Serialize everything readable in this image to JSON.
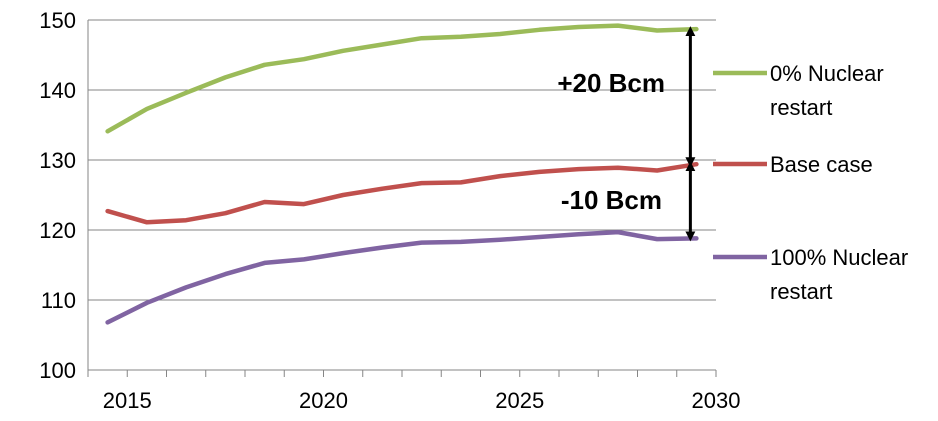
{
  "chart_data": {
    "type": "line",
    "x": [
      2014.5,
      2015.5,
      2016.5,
      2017.5,
      2018.5,
      2019.5,
      2020.5,
      2021.5,
      2022.5,
      2023.5,
      2024.5,
      2025.5,
      2026.5,
      2027.5,
      2028.5,
      2029.5
    ],
    "xlim": [
      2014,
      2030
    ],
    "ylim": [
      100,
      150
    ],
    "xticks": [
      "2015",
      "2020",
      "2025",
      "2030"
    ],
    "yticks": [
      "100",
      "110",
      "120",
      "130",
      "140",
      "150"
    ],
    "grid": "horizontal",
    "legend_position": "right",
    "series": [
      {
        "name": "0% Nuclear restart",
        "legend_lines": [
          "0% Nuclear",
          "restart"
        ],
        "color": "#9BBB59",
        "values": [
          134.1,
          137.3,
          139.6,
          141.8,
          143.6,
          144.4,
          145.6,
          146.5,
          147.4,
          147.6,
          148.0,
          148.6,
          149.0,
          149.2,
          148.5,
          148.7
        ]
      },
      {
        "name": "Base case",
        "legend_lines": [
          "Base case"
        ],
        "color": "#C0504D",
        "values": [
          122.7,
          121.1,
          121.4,
          122.4,
          124.0,
          123.7,
          125.0,
          125.9,
          126.7,
          126.8,
          127.7,
          128.3,
          128.7,
          128.9,
          128.5,
          129.4
        ]
      },
      {
        "name": "100% Nuclear restart",
        "legend_lines": [
          "100% Nuclear",
          "restart"
        ],
        "color": "#8064A2",
        "values": [
          106.8,
          109.6,
          111.8,
          113.7,
          115.3,
          115.8,
          116.7,
          117.5,
          118.2,
          118.3,
          118.6,
          119.0,
          119.4,
          119.7,
          118.7,
          118.8
        ]
      }
    ],
    "annotations": [
      {
        "label": "+20 Bcm",
        "x": 2029.5,
        "from": 148.7,
        "to": 129.4
      },
      {
        "label": "-10 Bcm",
        "x": 2029.5,
        "from": 129.4,
        "to": 118.8
      }
    ]
  }
}
